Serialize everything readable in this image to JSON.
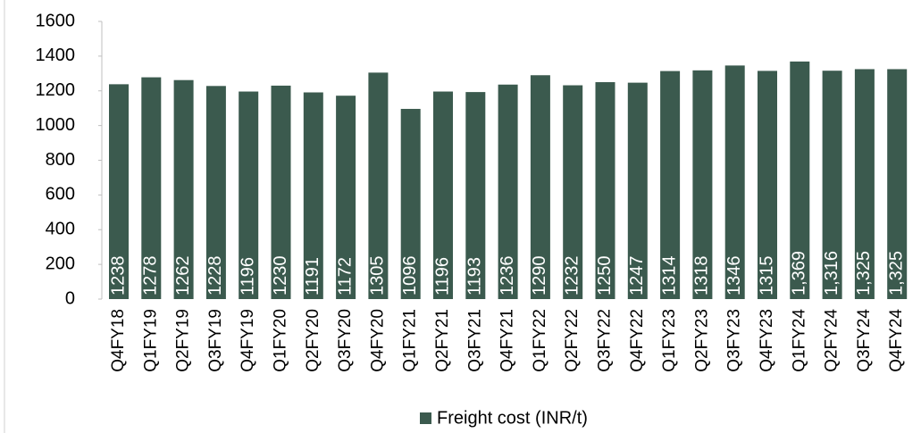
{
  "chart_data": {
    "type": "bar",
    "categories": [
      "Q4FY18",
      "Q1FY19",
      "Q2FY19",
      "Q3FY19",
      "Q4FY19",
      "Q1FY20",
      "Q2FY20",
      "Q3FY20",
      "Q4FY20",
      "Q1FY21",
      "Q2FY21",
      "Q3FY21",
      "Q4FY21",
      "Q1FY22",
      "Q2FY22",
      "Q3FY22",
      "Q4FY22",
      "Q1FY23",
      "Q2FY23",
      "Q3FY23",
      "Q4FY23",
      "Q1FY24",
      "Q2FY24",
      "Q3FY24",
      "Q4FY24"
    ],
    "series": [
      {
        "name": "Freight cost (INR/t)",
        "color": "#3b5a4e",
        "values": [
          1238,
          1278,
          1262,
          1228,
          1196,
          1230,
          1191,
          1172,
          1305,
          1096,
          1196,
          1193,
          1236,
          1290,
          1232,
          1250,
          1247,
          1314,
          1318,
          1346,
          1315,
          1369,
          1316,
          1325,
          1325
        ],
        "value_labels": [
          "1238",
          "1278",
          "1262",
          "1228",
          "1196",
          "1230",
          "1191",
          "1172",
          "1305",
          "1096",
          "1196",
          "1193",
          "1236",
          "1290",
          "1232",
          "1250",
          "1247",
          "1314",
          "1318",
          "1346",
          "1315",
          "1,369",
          "1,316",
          "1,325",
          "1,325"
        ]
      }
    ],
    "ylim": [
      0,
      1600
    ],
    "yticks": [
      0,
      200,
      400,
      600,
      800,
      1000,
      1200,
      1400,
      1600
    ],
    "legend": "bottom"
  }
}
